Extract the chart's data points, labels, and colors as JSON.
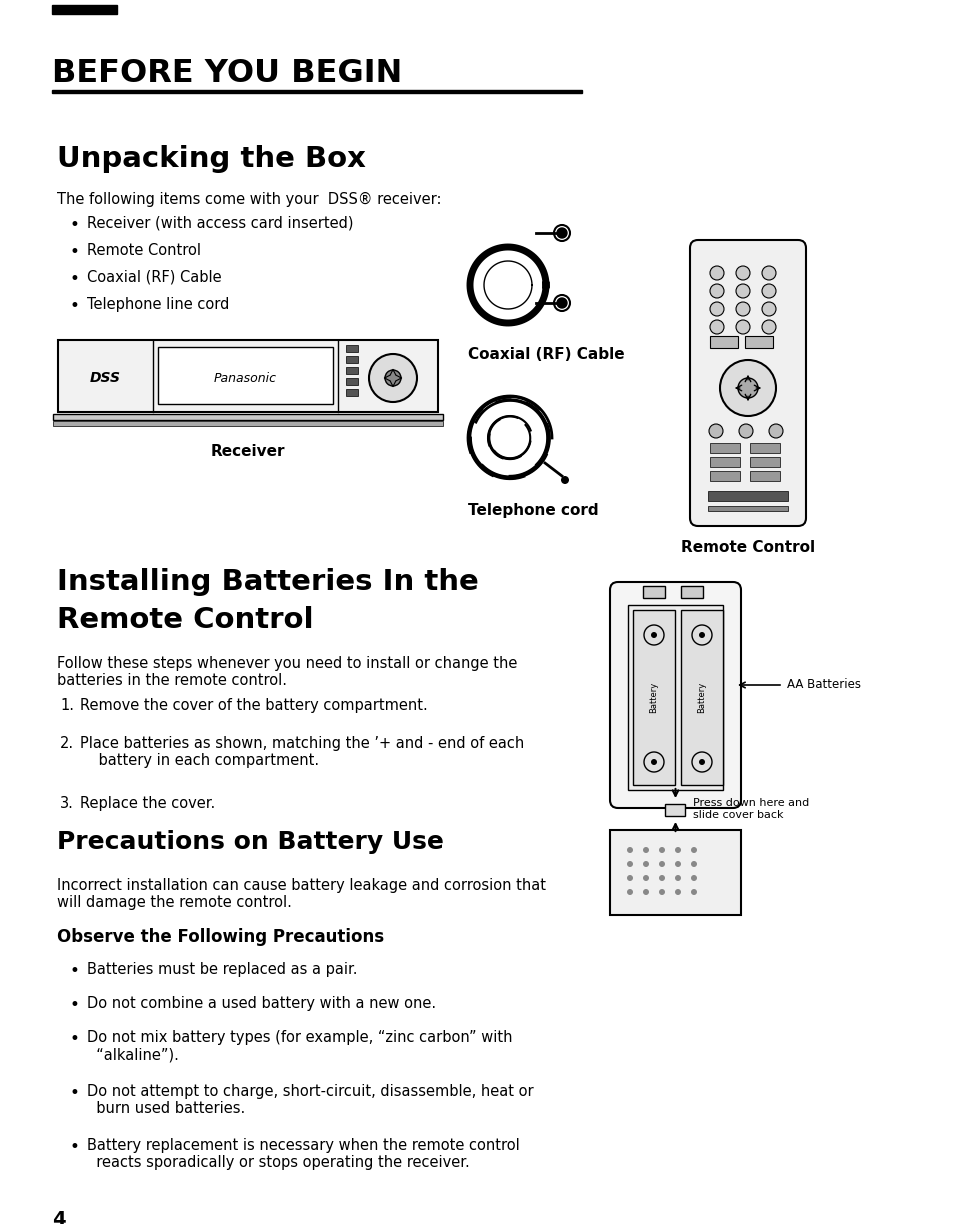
{
  "page_background": "#ffffff",
  "header_title": "BEFORE YOU BEGIN",
  "section1_title": "Unpacking the Box",
  "section1_intro": "The following items come with your  DSS® receiver:",
  "section1_bullets": [
    "Receiver (with access card inserted)",
    "Remote Control",
    "Coaxial (RF) Cable",
    "Telephone line cord"
  ],
  "receiver_label": "Receiver",
  "coaxial_label": "Coaxial (RF) Cable",
  "telephone_label": "Telephone cord",
  "remote_label": "Remote Control",
  "section2_title_line1": "Installing Batteries In the",
  "section2_title_line2": "Remote Control",
  "section2_intro": "Follow these steps whenever you need to install or change the\nbatteries in the remote control.",
  "section2_steps": [
    "Remove the cover of the battery compartment.",
    "Place batteries as shown, matching the ’+ and - end of each\n    battery in each compartment.",
    "Replace the cover."
  ],
  "section3_title": "Precautions on Battery Use",
  "section3_intro": "Incorrect installation can cause battery leakage and corrosion that\nwill damage the remote control.",
  "section3_sub": "Observe the Following Precautions",
  "section3_bullets": [
    "Batteries must be replaced as a pair.",
    "Do not combine a used battery with a new one.",
    "Do not mix battery types (for example, “zinc carbon” with\n  “alkaline”).",
    "Do not attempt to charge, short-circuit, disassemble, heat or\n  burn used batteries.",
    "Battery replacement is necessary when the remote control\n  reacts sporadically or stops operating the receiver."
  ],
  "page_number": "4",
  "aa_batteries_label": "AA Batteries",
  "press_down_label": "Press down here and\nslide cover back"
}
